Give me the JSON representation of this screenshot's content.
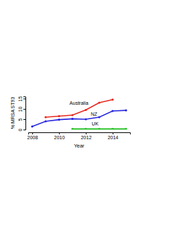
{
  "chart_data": {
    "type": "line",
    "x_label": "Year",
    "y_label": "% MRSA ST93",
    "x": [
      2008,
      2009,
      2010,
      2011,
      2012,
      2013,
      2014,
      2015
    ],
    "series": [
      {
        "name": "Australia",
        "color": "#e8281e",
        "marker": "circle",
        "values": [
          null,
          6,
          6.5,
          7,
          9.5,
          13,
          14.5,
          null
        ]
      },
      {
        "name": "NZ",
        "color": "#2727e0",
        "marker": "circle",
        "values": [
          1.5,
          4,
          4.8,
          5.2,
          5,
          6,
          9,
          9.3
        ]
      },
      {
        "name": "UK",
        "color": "#1fbf1f",
        "marker": "circle",
        "values": [
          null,
          null,
          null,
          0.3,
          0.3,
          0.3,
          0.3,
          0.3
        ]
      }
    ],
    "xlim": [
      2007.7,
      2015.3
    ],
    "xticks": [
      2008,
      2010,
      2012,
      2014
    ],
    "ylim": [
      0,
      16
    ],
    "yticks": [
      0,
      5,
      10,
      15
    ],
    "grid": false
  }
}
